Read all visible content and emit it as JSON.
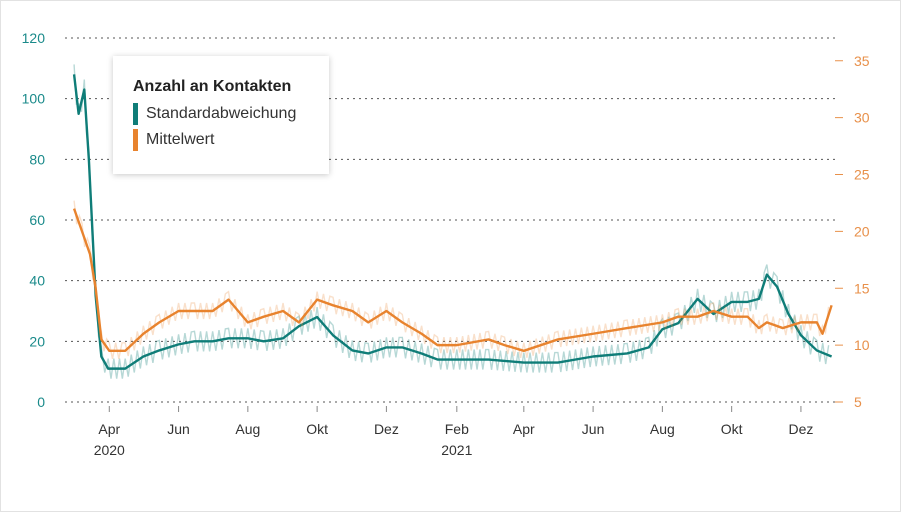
{
  "chart_data": {
    "type": "line",
    "title": "",
    "xlabel": "",
    "x_ticks": [
      "Apr",
      "Jun",
      "Aug",
      "Okt",
      "Dez",
      "Feb",
      "Apr",
      "Jun",
      "Aug",
      "Okt",
      "Dez"
    ],
    "x_tick_dates": [
      "2020-04-01",
      "2020-06-01",
      "2020-08-01",
      "2020-10-01",
      "2020-12-01",
      "2021-02-01",
      "2021-04-01",
      "2021-06-01",
      "2021-08-01",
      "2021-10-01",
      "2021-12-01"
    ],
    "year_labels": [
      {
        "text": "2020",
        "date": "2020-04-01"
      },
      {
        "text": "2021",
        "date": "2021-02-01"
      }
    ],
    "y_left": {
      "ticks": [
        "0",
        "20",
        "40",
        "60",
        "80",
        "100",
        "120"
      ],
      "range": [
        0,
        120
      ],
      "color": "#1a8a8a"
    },
    "y_right": {
      "ticks": [
        "5",
        "10",
        "15",
        "20",
        "25",
        "30",
        "35"
      ],
      "range": [
        5,
        37
      ],
      "color": "#e8904a"
    },
    "grid": "horizontal dotted",
    "legend": {
      "title": "Anzahl an Kontakten",
      "position": "top-left",
      "items": [
        {
          "label": "Standardabweichung",
          "color": "#0f7d78"
        },
        {
          "label": "Mittelwert",
          "color": "#e8832e"
        }
      ]
    },
    "series": [
      {
        "name": "Standardabweichung",
        "axis": "left",
        "color": "#0f7d78",
        "x": [
          "2020-03-01",
          "2020-03-05",
          "2020-03-10",
          "2020-03-14",
          "2020-03-20",
          "2020-03-25",
          "2020-03-31",
          "2020-04-05",
          "2020-04-15",
          "2020-05-01",
          "2020-05-15",
          "2020-06-01",
          "2020-06-15",
          "2020-07-01",
          "2020-07-15",
          "2020-08-01",
          "2020-08-15",
          "2020-09-01",
          "2020-09-15",
          "2020-10-01",
          "2020-10-15",
          "2020-11-01",
          "2020-11-15",
          "2020-12-01",
          "2020-12-15",
          "2021-01-01",
          "2021-01-15",
          "2021-02-01",
          "2021-03-01",
          "2021-04-01",
          "2021-05-01",
          "2021-06-01",
          "2021-07-01",
          "2021-07-20",
          "2021-08-01",
          "2021-08-15",
          "2021-09-01",
          "2021-09-15",
          "2021-10-01",
          "2021-10-15",
          "2021-10-25",
          "2021-11-01",
          "2021-11-10",
          "2021-11-20",
          "2021-12-01",
          "2021-12-15",
          "2021-12-28"
        ],
        "values": [
          108,
          95,
          103,
          80,
          35,
          15,
          11,
          11,
          11,
          15,
          17,
          19,
          20,
          20,
          21,
          21,
          20,
          21,
          25,
          28,
          22,
          17,
          16,
          18,
          18,
          16,
          14,
          14,
          14,
          13,
          13,
          15,
          16,
          18,
          24,
          26,
          34,
          29,
          33,
          33,
          34,
          42,
          38,
          29,
          22,
          17,
          15
        ]
      },
      {
        "name": "Mittelwert",
        "axis": "right",
        "color": "#e8832e",
        "x": [
          "2020-03-01",
          "2020-03-08",
          "2020-03-15",
          "2020-03-20",
          "2020-03-25",
          "2020-04-01",
          "2020-04-15",
          "2020-05-01",
          "2020-05-15",
          "2020-06-01",
          "2020-06-15",
          "2020-07-01",
          "2020-07-15",
          "2020-08-01",
          "2020-08-15",
          "2020-09-01",
          "2020-09-15",
          "2020-10-01",
          "2020-10-15",
          "2020-11-01",
          "2020-11-15",
          "2020-12-01",
          "2020-12-15",
          "2021-01-01",
          "2021-01-15",
          "2021-02-01",
          "2021-03-01",
          "2021-03-15",
          "2021-04-01",
          "2021-05-01",
          "2021-06-01",
          "2021-07-01",
          "2021-08-01",
          "2021-08-15",
          "2021-09-01",
          "2021-09-15",
          "2021-10-01",
          "2021-10-15",
          "2021-10-25",
          "2021-11-01",
          "2021-11-15",
          "2021-12-01",
          "2021-12-15",
          "2021-12-20",
          "2021-12-28"
        ],
        "values": [
          22,
          20,
          18,
          15,
          10.5,
          9.5,
          9.5,
          11,
          12,
          13,
          13,
          13,
          14,
          12,
          12.5,
          13,
          12,
          14,
          13.5,
          13,
          12,
          13,
          12,
          11,
          10,
          10,
          10.5,
          10,
          9.5,
          10.5,
          11,
          11.5,
          12,
          12.5,
          12.5,
          13,
          12.5,
          12.5,
          11.5,
          12,
          11.5,
          12,
          12,
          11,
          13.5
        ]
      }
    ]
  }
}
